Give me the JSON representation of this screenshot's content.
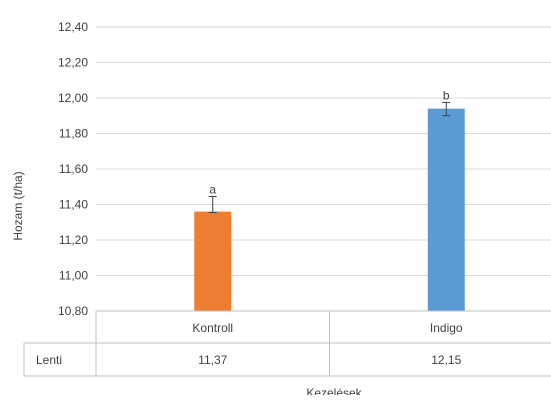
{
  "chart_data": {
    "type": "bar",
    "ylabel": "Hozam (t/ha)",
    "xlabel": "Kezelések",
    "ylim": [
      10.8,
      12.4
    ],
    "ytick_step": 0.2,
    "yticks": [
      "10,80",
      "11,00",
      "11,20",
      "11,40",
      "11,60",
      "11,80",
      "12,00",
      "12,20",
      "12,40"
    ],
    "grid": true,
    "categories": [
      "Kontroll",
      "Indigo"
    ],
    "values": [
      11.36,
      11.94
    ],
    "error_low": [
      11.355,
      11.9
    ],
    "error_high": [
      11.445,
      11.975
    ],
    "significance_letters": [
      "a",
      "b"
    ],
    "colors": [
      "#ED7D31",
      "#5B9BD5"
    ],
    "table": {
      "row_label": "Lenti",
      "cells": [
        "11,37",
        "12,15"
      ]
    }
  }
}
